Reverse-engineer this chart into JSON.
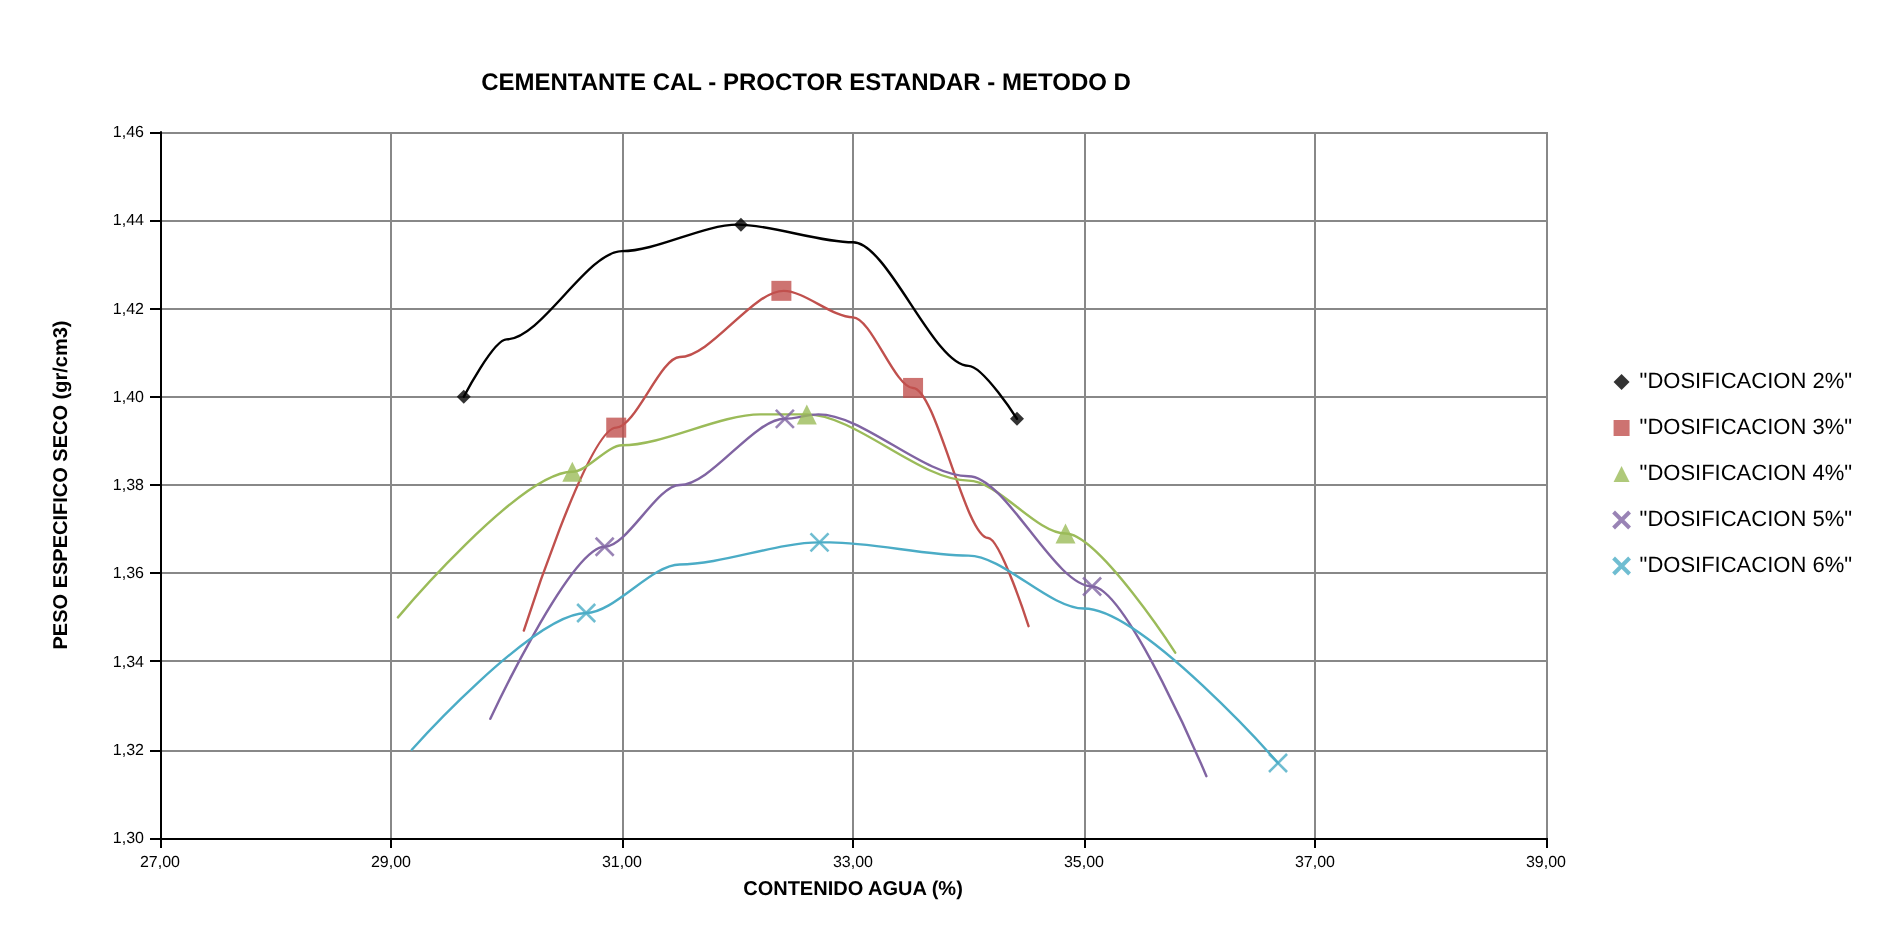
{
  "chart_data": {
    "type": "scatter",
    "title": "CEMENTANTE CAL - PROCTOR ESTANDAR - METODO D",
    "xlabel": "CONTENIDO AGUA (%)",
    "ylabel": "PESO ESPECIFICO SECO (gr/cm3)",
    "xlim": [
      27,
      39
    ],
    "ylim": [
      1.3,
      1.46
    ],
    "xticks": [
      {
        "value": 27,
        "label": "27,00"
      },
      {
        "value": 29,
        "label": "29,00"
      },
      {
        "value": 31,
        "label": "31,00"
      },
      {
        "value": 33,
        "label": "33,00"
      },
      {
        "value": 35,
        "label": "35,00"
      },
      {
        "value": 37,
        "label": "37,00"
      },
      {
        "value": 39,
        "label": "39,00"
      }
    ],
    "yticks": [
      {
        "value": 1.3,
        "label": "1,30"
      },
      {
        "value": 1.32,
        "label": "1,32"
      },
      {
        "value": 1.34,
        "label": "1,34"
      },
      {
        "value": 1.36,
        "label": "1,36"
      },
      {
        "value": 1.38,
        "label": "1,38"
      },
      {
        "value": 1.4,
        "label": "1,40"
      },
      {
        "value": 1.42,
        "label": "1,42"
      },
      {
        "value": 1.44,
        "label": "1,44"
      },
      {
        "value": 1.46,
        "label": "1,46"
      }
    ],
    "grid": true,
    "legend": "right",
    "series": [
      {
        "name": "\"DOSIFICACION 2%\"",
        "color": "#000000",
        "marker": "diamond",
        "x": [
          29.63,
          32.03,
          34.42
        ],
        "values": [
          1.4,
          1.439,
          1.395
        ]
      },
      {
        "name": "\"DOSIFICACION 3%\"",
        "color": "#c0504d",
        "marker": "square",
        "x": [
          30.95,
          32.38,
          33.52
        ],
        "values": [
          1.393,
          1.424,
          1.402
        ]
      },
      {
        "name": "\"DOSIFICACION 4%\"",
        "color": "#9bbb59",
        "marker": "triangle",
        "x": [
          30.57,
          32.6,
          34.84
        ],
        "values": [
          1.383,
          1.396,
          1.369
        ]
      },
      {
        "name": "\"DOSIFICACION 5%\"",
        "color": "#8064a2",
        "marker": "cross",
        "x": [
          30.85,
          32.41,
          35.07
        ],
        "values": [
          1.366,
          1.395,
          1.357
        ]
      },
      {
        "name": "\"DOSIFICACION 6%\"",
        "color": "#4bacc6",
        "marker": "cross",
        "x": [
          30.69,
          32.71,
          36.68
        ],
        "values": [
          1.351,
          1.367,
          1.317
        ]
      },
      {
        "type": "line",
        "color": "#000000",
        "marker": "none",
        "x": [
          29.63,
          30,
          31,
          32,
          33,
          34,
          34.42
        ],
        "values": [
          1.4,
          1.413,
          1.433,
          1.439,
          1.435,
          1.407,
          1.395
        ]
      },
      {
        "type": "line",
        "color": "#c0504d",
        "marker": "none",
        "x": [
          30.15,
          30.95,
          31.5,
          32.4,
          33,
          33.52,
          34.17,
          34.52
        ],
        "values": [
          1.347,
          1.393,
          1.409,
          1.424,
          1.418,
          1.402,
          1.368,
          1.348
        ]
      },
      {
        "type": "line",
        "color": "#9bbb59",
        "marker": "none",
        "x": [
          29.06,
          30.57,
          31,
          32.2,
          32.6,
          34,
          34.84,
          35.79
        ],
        "values": [
          1.35,
          1.383,
          1.389,
          1.396,
          1.396,
          1.381,
          1.369,
          1.342
        ]
      },
      {
        "type": "line",
        "color": "#8064a2",
        "marker": "none",
        "x": [
          29.86,
          30.85,
          31.5,
          32.41,
          32.7,
          34,
          35.07,
          36.06
        ],
        "values": [
          1.327,
          1.366,
          1.38,
          1.395,
          1.396,
          1.382,
          1.357,
          1.314
        ]
      },
      {
        "type": "line",
        "color": "#4bacc6",
        "marker": "none",
        "x": [
          29.18,
          30.69,
          31.5,
          32.71,
          32.8,
          34,
          35,
          36.68
        ],
        "values": [
          1.32,
          1.351,
          1.362,
          1.367,
          1.367,
          1.364,
          1.352,
          1.317
        ]
      }
    ]
  }
}
